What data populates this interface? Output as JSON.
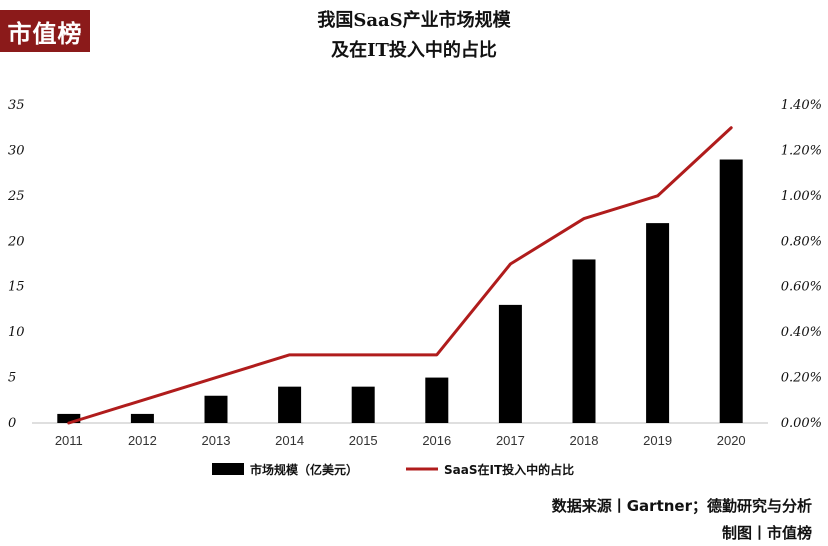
{
  "logo": {
    "text": "市值榜",
    "bg_color": "#8b1a1a"
  },
  "title": {
    "line1": "我国SaaS产业市场规模",
    "line2": "及在IT投入中的占比"
  },
  "chart_data": {
    "type": "bar+line",
    "categories": [
      "2011",
      "2012",
      "2013",
      "2014",
      "2015",
      "2016",
      "2017",
      "2018",
      "2019",
      "2020"
    ],
    "series": [
      {
        "name": "市场规模（亿美元）",
        "type": "bar",
        "axis": "left",
        "color": "#000000",
        "values": [
          1,
          1,
          3,
          4,
          4,
          5,
          13,
          18,
          22,
          29
        ]
      },
      {
        "name": "SaaS在IT投入中的占比",
        "type": "line",
        "axis": "right",
        "color": "#b01c1c",
        "values": [
          0.0,
          0.1,
          0.2,
          0.3,
          0.3,
          0.3,
          0.7,
          0.9,
          1.0,
          1.3
        ]
      }
    ],
    "y_left": {
      "ylim": [
        0,
        35
      ],
      "ticks": [
        "0",
        "5",
        "10",
        "15",
        "20",
        "25",
        "30",
        "35"
      ]
    },
    "y_right": {
      "ylim": [
        0,
        1.4
      ],
      "ticks": [
        "0.00%",
        "0.20%",
        "0.40%",
        "0.60%",
        "0.80%",
        "1.00%",
        "1.20%",
        "1.40%"
      ]
    },
    "legend_position": "bottom",
    "grid": false
  },
  "source": {
    "line1": "数据来源丨Gartner；德勤研究与分析",
    "line2": "制图丨市值榜"
  }
}
